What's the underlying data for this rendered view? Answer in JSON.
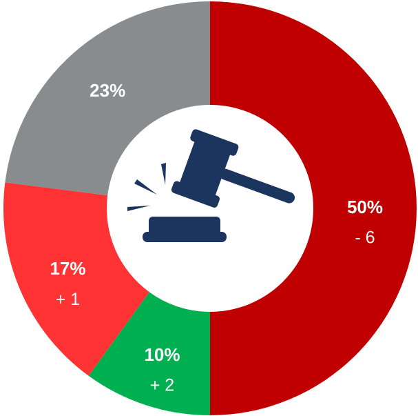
{
  "chart_data": {
    "type": "donut",
    "values": [
      50,
      10,
      17,
      23
    ],
    "value_labels": [
      "50%",
      "10%",
      "17%",
      "23%"
    ],
    "annotations": [
      "- 6",
      "+ 2",
      "+ 1",
      null
    ],
    "colors": [
      "#c00000",
      "#00b050",
      "#ff3333",
      "#898c8e"
    ]
  }
}
